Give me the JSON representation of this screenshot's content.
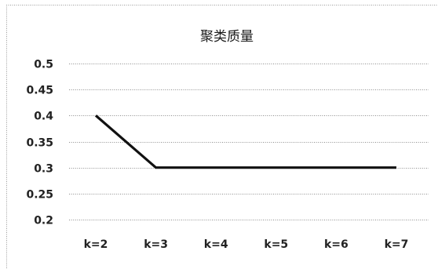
{
  "chart_data": {
    "type": "line",
    "title": "聚类质量",
    "xlabel": "",
    "ylabel": "",
    "categories": [
      "k=2",
      "k=3",
      "k=4",
      "k=5",
      "k=6",
      "k=7"
    ],
    "series": [
      {
        "values": [
          0.4,
          0.3,
          0.3,
          0.3,
          0.3,
          0.3
        ],
        "color": "#111111"
      }
    ],
    "ylim": [
      0.2,
      0.5
    ],
    "yticks": [
      "0.2",
      "0.25",
      "0.3",
      "0.35",
      "0.4",
      "0.45",
      "0.5"
    ],
    "grid": true,
    "legend": "none"
  }
}
